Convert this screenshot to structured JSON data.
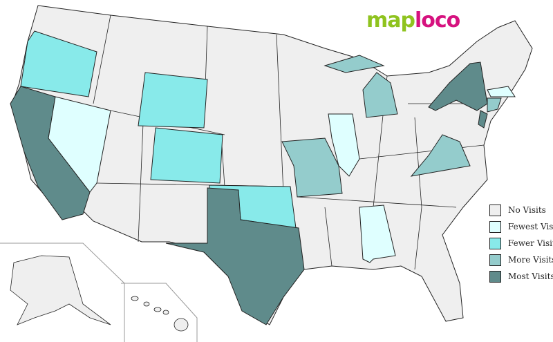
{
  "logo": {
    "part1": "map",
    "part2": "loco"
  },
  "colors": {
    "none": "#efefef",
    "fewest": "#dfffff",
    "fewer": "#88eaea",
    "more": "#94cccc",
    "most": "#5f8b8b"
  },
  "legend": [
    {
      "label": "No Visits",
      "level": "none"
    },
    {
      "label": "Fewest Visits",
      "level": "fewest"
    },
    {
      "label": "Fewer Visits",
      "level": "fewer"
    },
    {
      "label": "More Visits",
      "level": "more"
    },
    {
      "label": "Most Visits",
      "level": "most"
    }
  ],
  "states": {
    "California": "most",
    "Texas": "most",
    "New York": "most",
    "New Jersey": "most",
    "Missouri": "more",
    "Michigan": "more",
    "Virginia": "more",
    "Connecticut": "more",
    "Oregon": "fewer",
    "Wyoming": "fewer",
    "Colorado": "fewer",
    "Oklahoma": "fewer",
    "Nevada": "fewest",
    "Illinois": "fewest",
    "Alabama": "fewest",
    "Massachusetts": "fewest"
  }
}
